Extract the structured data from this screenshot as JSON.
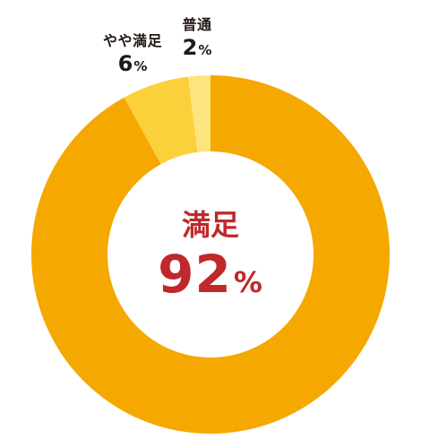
{
  "chart_data": {
    "type": "pie",
    "donut": true,
    "categories": [
      "満足",
      "やや満足",
      "普通"
    ],
    "values": [
      92,
      6,
      2
    ],
    "unit": "%",
    "colors": [
      "#f5a800",
      "#fcd03b",
      "#fde47f"
    ],
    "center_label": {
      "name": "満足",
      "value": "92",
      "unit": "%"
    },
    "outer_labels": [
      {
        "name": "やや満足",
        "value": "6",
        "unit": "%"
      },
      {
        "name": "普通",
        "value": "2",
        "unit": "%"
      }
    ],
    "label_color": "#231815",
    "center_color": "#c0282c"
  }
}
